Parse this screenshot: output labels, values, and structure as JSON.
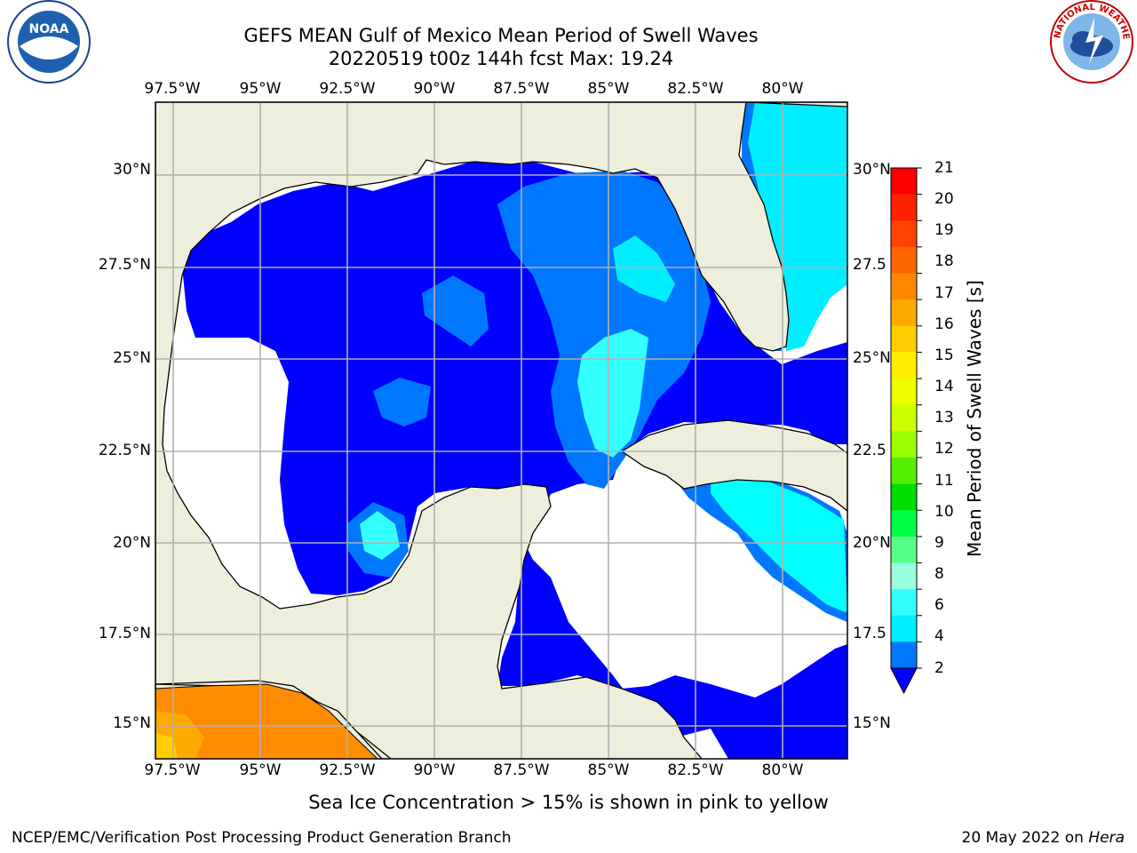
{
  "title": {
    "line1": "GEFS MEAN Gulf of Mexico Mean Period of Swell Waves",
    "line2": "20220519 t00z 144h fcst   Max: 19.24"
  },
  "map": {
    "lon_labels": [
      "97.5°W",
      "95°W",
      "92.5°W",
      "90°W",
      "87.5°W",
      "85°W",
      "82.5°W",
      "80°W"
    ],
    "lat_labels_left": [
      "30°N",
      "27.5°N",
      "25°N",
      "22.5°N",
      "20°N",
      "17.5°N",
      "15°N"
    ],
    "lat_labels_right": [
      "30°N",
      "27.5",
      "25°N",
      "22.5",
      "20°N",
      "17.5",
      "15°N"
    ],
    "colors": {
      "land": "#eeeedc",
      "ocean_blue": "#0000ff",
      "ocean_mid": "#0077ff",
      "ocean_light": "#00ffff",
      "ice": "#ff8c00"
    }
  },
  "colorbar": {
    "title": "Mean Period of Swell Waves [s]",
    "labels": [
      "21",
      "20",
      "19",
      "18",
      "17",
      "16",
      "15",
      "14",
      "13",
      "12",
      "11",
      "10",
      "9",
      "8",
      "6",
      "4",
      "2"
    ],
    "colors": [
      "#ff0000",
      "#ff2200",
      "#ff4400",
      "#ff6600",
      "#ff8800",
      "#ffaa00",
      "#ffcc00",
      "#ffee00",
      "#eeff00",
      "#ccff00",
      "#99ff00",
      "#55ee00",
      "#00dd00",
      "#00ff44",
      "#55ff88",
      "#99ffdd",
      "#33ffff",
      "#00eeff",
      "#0077ff"
    ]
  },
  "logos": {
    "noaa": "NOAA",
    "nws": "NATIONAL WEATHER SERVICE"
  },
  "note": "Sea Ice Concentration > 15% is shown in pink to yellow",
  "footer": {
    "left": "NCEP/EMC/Verification Post Processing Product Generation Branch",
    "date": "20 May 2022 on ",
    "host": "Hera"
  }
}
